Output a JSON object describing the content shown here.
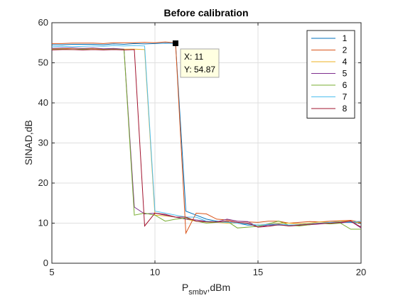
{
  "chart_data": {
    "type": "line",
    "title": "Before calibration",
    "xlabel_main": "P",
    "xlabel_sub": "smbv",
    "xlabel_rest": ",dBm",
    "ylabel": "SINAD,dB",
    "xlim": [
      5,
      20
    ],
    "ylim": [
      0,
      60
    ],
    "xticks": [
      5,
      10,
      15,
      20
    ],
    "yticks": [
      0,
      10,
      20,
      30,
      40,
      50,
      60
    ],
    "grid": true,
    "legend_position": "top-right",
    "series": [
      {
        "name": "1",
        "color": "#0072BD",
        "x": [
          5,
          5.5,
          6,
          6.5,
          7,
          7.5,
          8,
          8.5,
          9,
          9.5,
          10,
          10.5,
          11,
          11.5,
          12,
          12.5,
          13,
          13.5,
          14,
          14.5,
          15,
          15.5,
          16,
          16.5,
          17,
          17.5,
          18,
          18.5,
          19,
          19.5,
          20
        ],
        "y": [
          54.5,
          54.5,
          54.6,
          54.6,
          54.6,
          54.5,
          54.7,
          54.6,
          54.8,
          54.7,
          54.8,
          54.9,
          54.87,
          13,
          12,
          11,
          10.5,
          10.2,
          10,
          9.5,
          9.5,
          9.5,
          9.5,
          9.5,
          9.6,
          9.8,
          10,
          10,
          10.2,
          10.2,
          10
        ]
      },
      {
        "name": "2",
        "color": "#D95319",
        "x": [
          5,
          5.5,
          6,
          6.5,
          7,
          7.5,
          8,
          8.5,
          9,
          9.5,
          10,
          10.5,
          11,
          11.5,
          12,
          12.5,
          13,
          13.5,
          14,
          14.5,
          15,
          15.5,
          16,
          16.5,
          17,
          17.5,
          18,
          18.5,
          19,
          19.5,
          20
        ],
        "y": [
          54.8,
          54.8,
          54.9,
          54.9,
          54.9,
          54.8,
          55,
          55,
          55,
          55.1,
          55,
          55.2,
          55,
          7.5,
          12.5,
          12.3,
          11,
          10.8,
          10.5,
          10.3,
          10.2,
          10.5,
          10.5,
          10,
          10.2,
          10.4,
          10.3,
          10.5,
          10.6,
          10.7,
          10.2
        ]
      },
      {
        "name": "4",
        "color": "#EDB120",
        "x": [
          5,
          5.5,
          6,
          6.5,
          7,
          7.5,
          8,
          8.5,
          9,
          9.5,
          10,
          10.5,
          11,
          11.5,
          12,
          12.5,
          13,
          13.5,
          14,
          14.5,
          15,
          15.5,
          16,
          16.5,
          17,
          17.5,
          18,
          18.5,
          19,
          19.5,
          20
        ],
        "y": [
          53.5,
          53.5,
          53.6,
          53.6,
          53.5,
          53.4,
          53.5,
          53.4,
          53.4,
          53.3,
          12,
          11.8,
          11.5,
          11,
          10.5,
          10.3,
          10.2,
          10,
          10,
          9.8,
          9.5,
          9.7,
          10,
          10,
          9.8,
          10,
          10.3,
          10.2,
          10.5,
          10.5,
          10
        ]
      },
      {
        "name": "5",
        "color": "#7E2F8E",
        "x": [
          5,
          5.5,
          6,
          6.5,
          7,
          7.5,
          8,
          8.5,
          9,
          9.5,
          10,
          10.5,
          11,
          11.5,
          12,
          12.5,
          13,
          13.5,
          14,
          14.5,
          15,
          15.5,
          16,
          16.5,
          17,
          17.5,
          18,
          18.5,
          19,
          19.5,
          20
        ],
        "y": [
          53.6,
          53.7,
          53.7,
          53.6,
          53.7,
          53.5,
          53.6,
          53.4,
          14,
          12.3,
          12.5,
          12,
          11.5,
          11,
          10.8,
          10.5,
          10.3,
          11,
          10.5,
          10.4,
          9,
          9.5,
          9.8,
          9.3,
          9.4,
          9.6,
          9.8,
          10,
          10,
          10.5,
          8.8
        ]
      },
      {
        "name": "6",
        "color": "#77AC30",
        "x": [
          5,
          5.5,
          6,
          6.5,
          7,
          7.5,
          8,
          8.5,
          9,
          9.5,
          10,
          10.5,
          11,
          11.5,
          12,
          12.5,
          13,
          13.5,
          14,
          14.5,
          15,
          15.5,
          16,
          16.5,
          17,
          17.5,
          18,
          18.5,
          19,
          19.5,
          20
        ],
        "y": [
          53.3,
          53.4,
          53.3,
          53.4,
          53.3,
          53.3,
          53.4,
          53.3,
          12,
          12.5,
          12,
          10.5,
          11,
          11.3,
          10.5,
          10,
          10.2,
          10.5,
          8.8,
          9,
          9.2,
          9.8,
          10.5,
          9.5,
          9.3,
          9.6,
          10,
          9.8,
          10,
          8.5,
          8.5
        ]
      },
      {
        "name": "7",
        "color": "#4DBEEE",
        "x": [
          5,
          5.5,
          6,
          6.5,
          7,
          7.5,
          8,
          8.5,
          9,
          9.5,
          10,
          10.5,
          11,
          11.5,
          12,
          12.5,
          13,
          13.5,
          14,
          14.5,
          15,
          15.5,
          16,
          16.5,
          17,
          17.5,
          18,
          18.5,
          19,
          19.5,
          20
        ],
        "y": [
          54,
          54.1,
          54,
          54.1,
          54.2,
          54.1,
          54.3,
          54.2,
          54.3,
          54.2,
          13,
          12.5,
          12,
          11.5,
          11.5,
          10.5,
          10.3,
          10.2,
          10,
          9.8,
          9.5,
          9.7,
          9.8,
          9.5,
          9.6,
          9.8,
          10,
          10.2,
          10.3,
          10.3,
          10.5
        ]
      },
      {
        "name": "8",
        "color": "#A2142F",
        "x": [
          5,
          5.5,
          6,
          6.5,
          7,
          7.5,
          8,
          8.5,
          9,
          9.5,
          10,
          10.5,
          11,
          11.5,
          12,
          12.5,
          13,
          13.5,
          14,
          14.5,
          15,
          15.5,
          16,
          16.5,
          17,
          17.5,
          18,
          18.5,
          19,
          19.5,
          20
        ],
        "y": [
          53.2,
          53.3,
          53.3,
          53.2,
          53.3,
          53.2,
          53.3,
          53.2,
          53.3,
          9.3,
          12.5,
          12.2,
          11.5,
          11.5,
          10.5,
          10.3,
          10.3,
          10.5,
          10.2,
          10,
          9,
          9.2,
          9.6,
          9.3,
          9.5,
          9.7,
          9.9,
          10,
          10.2,
          10.5,
          9
        ]
      }
    ],
    "datatip": {
      "x": 11,
      "y": 54.87,
      "line1": "X: 11",
      "line2": "Y: 54.87"
    }
  }
}
